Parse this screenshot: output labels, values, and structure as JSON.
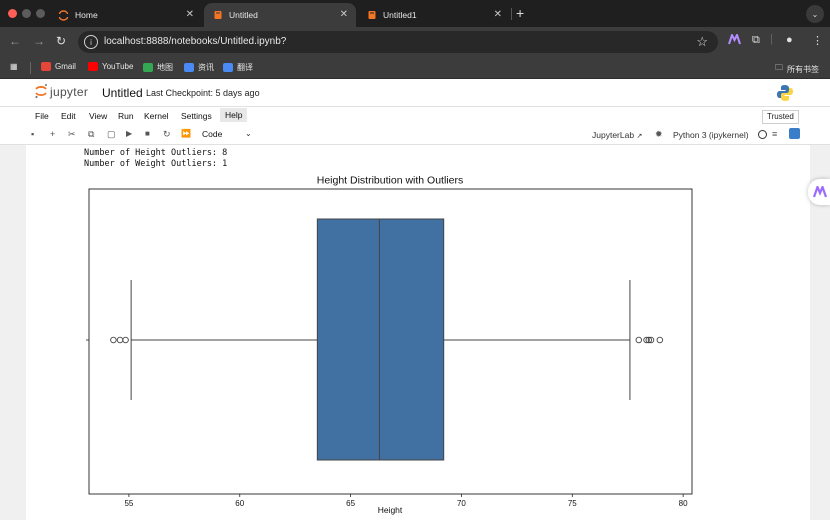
{
  "browser": {
    "tabs": [
      {
        "label": "Home"
      },
      {
        "label": "Untitled"
      },
      {
        "label": "Untitled1"
      }
    ],
    "url": "localhost:8888/notebooks/Untitled.ipynb?",
    "bookmarks": [
      {
        "label": "Gmail"
      },
      {
        "label": "YouTube"
      },
      {
        "label": "地图"
      },
      {
        "label": "资讯"
      },
      {
        "label": "翻译"
      }
    ],
    "all_bookmarks_label": "所有书签"
  },
  "jupyter": {
    "brand": "jupyter",
    "notebook_title": "Untitled",
    "checkpoint": "Last Checkpoint: 5 days ago",
    "menu": [
      "File",
      "Edit",
      "View",
      "Run",
      "Kernel",
      "Settings",
      "Help"
    ],
    "trusted_label": "Trusted",
    "cell_type": "Code",
    "jupyterlab_link": "JupyterLab",
    "kernel_name": "Python 3 (ipykernel)"
  },
  "output": {
    "lines": [
      "Number of Height Outliers: 8",
      "Number of Weight Outliers: 1"
    ]
  },
  "chart_data": {
    "type": "box",
    "title": "Height Distribution with Outliers",
    "xlabel": "Height",
    "ylabel": "",
    "xlim": [
      53.2,
      80.4
    ],
    "xticks": [
      55,
      60,
      65,
      70,
      75,
      80
    ],
    "box": {
      "whisker_low": 55.1,
      "q1": 63.5,
      "median": 66.3,
      "q3": 69.2,
      "whisker_high": 77.6
    },
    "outliers": [
      54.3,
      54.6,
      54.85,
      78.0,
      78.35,
      78.45,
      78.55,
      78.95
    ],
    "box_color": "#4170a2",
    "grid": false
  }
}
